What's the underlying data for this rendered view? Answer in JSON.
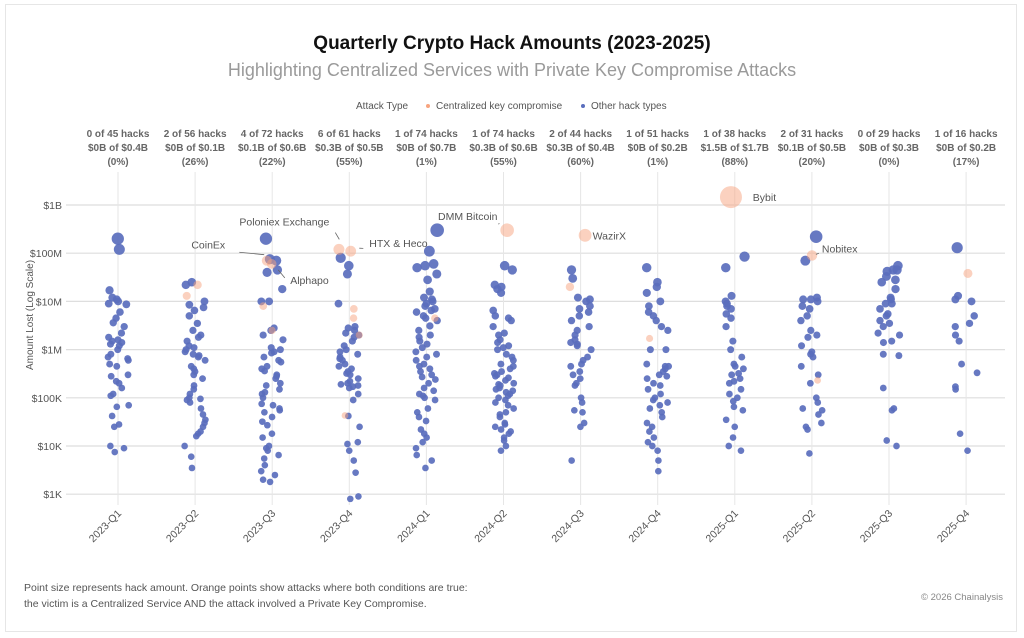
{
  "chart_data": {
    "type": "scatter",
    "title": "Quarterly Crypto Hack Amounts (2023-2025)",
    "subtitle": "Highlighting Centralized Services with Private Key Compromise Attacks",
    "ylabel": "Amount Lost (Log Scale)",
    "xlabel": "",
    "y_scale": "log",
    "ylim": [
      1000,
      2000000000
    ],
    "y_ticks": [
      1000000000.0,
      100000000.0,
      10000000.0,
      1000000.0,
      100000.0,
      10000.0,
      1000.0
    ],
    "y_tick_labels": [
      "$1B",
      "$100M",
      "$10M",
      "$1M",
      "$100K",
      "$10K",
      "$1K"
    ],
    "grid": true,
    "legend": {
      "title": "Attack Type",
      "placement": "top",
      "entries": [
        {
          "name": "Centralized key compromise",
          "color": "#f7a47f"
        },
        {
          "name": "Other hack types",
          "color": "#5a6ebd"
        }
      ]
    },
    "point_size_encodes": "amount",
    "categories": [
      "2023-Q1",
      "2023-Q2",
      "2023-Q3",
      "2023-Q4",
      "2024-Q1",
      "2024-Q2",
      "2024-Q3",
      "2024-Q4",
      "2025-Q1",
      "2025-Q2",
      "2025-Q3",
      "2025-Q4"
    ],
    "quarter_stats": [
      {
        "hacks": "0 of 45 hacks",
        "amount": "$0B of $0.4B",
        "pct": "(0%)"
      },
      {
        "hacks": "2 of 56 hacks",
        "amount": "$0B of $0.1B",
        "pct": "(26%)"
      },
      {
        "hacks": "4 of 72 hacks",
        "amount": "$0.1B of $0.6B",
        "pct": "(22%)"
      },
      {
        "hacks": "6 of 61 hacks",
        "amount": "$0.3B of $0.5B",
        "pct": "(55%)"
      },
      {
        "hacks": "1 of 74 hacks",
        "amount": "$0B of $0.7B",
        "pct": "(1%)"
      },
      {
        "hacks": "1 of 74 hacks",
        "amount": "$0.3B of $0.6B",
        "pct": "(55%)"
      },
      {
        "hacks": "2 of 44 hacks",
        "amount": "$0.3B of $0.4B",
        "pct": "(60%)"
      },
      {
        "hacks": "1 of 51 hacks",
        "amount": "$0B of $0.2B",
        "pct": "(1%)"
      },
      {
        "hacks": "1 of 38 hacks",
        "amount": "$1.5B of $1.7B",
        "pct": "(88%)"
      },
      {
        "hacks": "2 of 31 hacks",
        "amount": "$0.1B of $0.5B",
        "pct": "(20%)"
      },
      {
        "hacks": "0 of 29 hacks",
        "amount": "$0B of $0.3B",
        "pct": "(0%)"
      },
      {
        "hacks": "1 of 16 hacks",
        "amount": "$0B of $0.2B",
        "pct": "(17%)"
      }
    ],
    "series": [
      {
        "name": "Centralized key compromise",
        "color": "#f7a47f",
        "points": [
          [],
          [
            22000000.0,
            13000000.0
          ],
          [
            70000000.0,
            60000000.0,
            8000000.0,
            2500000.0
          ],
          [
            120000000.0,
            110000000.0,
            7000000.0,
            4500000.0,
            2000000.0,
            43000.0
          ],
          [
            4500000.0
          ],
          [
            300000000.0
          ],
          [
            235000000.0,
            20000000.0
          ],
          [
            1700000.0
          ],
          [
            1460000000.0
          ],
          [
            90000000.0,
            230000.0
          ],
          [],
          [
            38000000.0
          ]
        ]
      },
      {
        "name": "Other hack types",
        "color": "#5a6ebd",
        "points": [
          [
            200000000.0,
            120000000.0,
            17000000.0,
            12000000.0,
            11000000.0,
            10000000.0,
            9000000.0,
            8700000.0,
            6000000.0,
            4500000.0,
            3600000.0,
            3000000.0,
            2200000.0,
            1800000.0,
            1600000.0,
            1500000.0,
            1400000.0,
            1300000.0,
            1200000.0,
            1000000.0,
            800000.0,
            700000.0,
            650000.0,
            600000.0,
            500000.0,
            450000.0,
            300000.0,
            280000.0,
            220000.0,
            200000.0,
            160000.0,
            120000.0,
            110000.0,
            70000.0,
            65000.0,
            42000.0,
            28000.0,
            25000.0,
            10000.0,
            9000.0,
            7500.0
          ],
          [
            25000000.0,
            22000000.0,
            10000000.0,
            8500000.0,
            7500000.0,
            6500000.0,
            5000000.0,
            3500000.0,
            2500000.0,
            2000000.0,
            1800000.0,
            1500000.0,
            1200000.0,
            1100000.0,
            1000000.0,
            900000.0,
            800000.0,
            750000.0,
            700000.0,
            600000.0,
            450000.0,
            400000.0,
            350000.0,
            300000.0,
            250000.0,
            180000.0,
            150000.0,
            120000.0,
            100000.0,
            95000.0,
            90000.0,
            80000.0,
            60000.0,
            45000.0,
            35000.0,
            30000.0,
            25000.0,
            20000.0,
            18000.0,
            16000.0,
            10000.0,
            6000.0,
            3500.0
          ],
          [
            200000000.0,
            75000000.0,
            70000000.0,
            45000000.0,
            40000000.0,
            18000000.0,
            10000000.0,
            10000000.0,
            2800000.0,
            2500000.0,
            2000000.0,
            1600000.0,
            1100000.0,
            1000000.0,
            900000.0,
            850000.0,
            700000.0,
            600000.0,
            550000.0,
            450000.0,
            400000.0,
            360000.0,
            300000.0,
            280000.0,
            250000.0,
            200000.0,
            180000.0,
            150000.0,
            130000.0,
            120000.0,
            100000.0,
            75000.0,
            70000.0,
            60000.0,
            55000.0,
            50000.0,
            40000.0,
            32000.0,
            27000.0,
            18000.0,
            15000.0,
            10000.0,
            9000.0,
            8000.0,
            6500.0,
            5500.0,
            4000.0,
            3000.0,
            2500.0,
            2000.0,
            1800.0
          ],
          [
            80000000.0,
            55000000.0,
            37000000.0,
            9000000.0,
            3000000.0,
            2800000.0,
            2500000.0,
            2200000.0,
            2000000.0,
            1800000.0,
            1500000.0,
            1200000.0,
            1000000.0,
            900000.0,
            800000.0,
            700000.0,
            650000.0,
            600000.0,
            500000.0,
            450000.0,
            400000.0,
            350000.0,
            320000.0,
            300000.0,
            250000.0,
            220000.0,
            200000.0,
            190000.0,
            180000.0,
            170000.0,
            160000.0,
            120000.0,
            90000.0,
            42000.0,
            25000.0,
            12000.0,
            11000.0,
            8000.0,
            5000.0,
            2800.0,
            900.0,
            800.0
          ],
          [
            300000000.0,
            110000000.0,
            60000000.0,
            55000000.0,
            50000000.0,
            37000000.0,
            28000000.0,
            16000000.0,
            12000000.0,
            11000000.0,
            10000000.0,
            9000000.0,
            8000000.0,
            7000000.0,
            6500000.0,
            6000000.0,
            5000000.0,
            4500000.0,
            4000000.0,
            3100000.0,
            2500000.0,
            2000000.0,
            1800000.0,
            1500000.0,
            1300000.0,
            1100000.0,
            900000.0,
            800000.0,
            700000.0,
            600000.0,
            500000.0,
            450000.0,
            400000.0,
            350000.0,
            300000.0,
            270000.0,
            240000.0,
            200000.0,
            160000.0,
            140000.0,
            120000.0,
            110000.0,
            100000.0,
            90000.0,
            60000.0,
            50000.0,
            40000.0,
            33000.0,
            22000.0,
            18000.0,
            15000.0,
            12000.0,
            9000.0,
            6500.0,
            5000.0,
            3500.0
          ],
          [
            55000000.0,
            45000000.0,
            22000000.0,
            20000000.0,
            18000000.0,
            15000000.0,
            6500000.0,
            5000000.0,
            4500000.0,
            4000000.0,
            3000000.0,
            2200000.0,
            2000000.0,
            1600000.0,
            1400000.0,
            1200000.0,
            1100000.0,
            1000000.0,
            800000.0,
            700000.0,
            600000.0,
            500000.0,
            450000.0,
            400000.0,
            350000.0,
            320000.0,
            300000.0,
            280000.0,
            260000.0,
            230000.0,
            200000.0,
            190000.0,
            180000.0,
            160000.0,
            150000.0,
            140000.0,
            130000.0,
            120000.0,
            110000.0,
            100000.0,
            90000.0,
            80000.0,
            70000.0,
            60000.0,
            50000.0,
            45000.0,
            40000.0,
            30000.0,
            28000.0,
            25000.0,
            22000.0,
            20000.0,
            18000.0,
            15000.0,
            13000.0,
            10000.0,
            8000.0
          ],
          [
            45000000.0,
            30000000.0,
            12000000.0,
            11000000.0,
            10000000.0,
            8000000.0,
            7000000.0,
            6000000.0,
            5000000.0,
            4000000.0,
            3000000.0,
            2500000.0,
            2000000.0,
            1600000.0,
            1400000.0,
            1300000.0,
            1200000.0,
            1000000.0,
            700000.0,
            600000.0,
            500000.0,
            450000.0,
            350000.0,
            300000.0,
            250000.0,
            200000.0,
            180000.0,
            100000.0,
            80000.0,
            55000.0,
            50000.0,
            30000.0,
            25000.0,
            5000.0
          ],
          [
            50000000.0,
            25000000.0,
            20000000.0,
            15000000.0,
            10000000.0,
            8000000.0,
            6000000.0,
            5000000.0,
            4000000.0,
            3000000.0,
            2500000.0,
            1000000.0,
            1000000.0,
            500000.0,
            450000.0,
            450000.0,
            400000.0,
            350000.0,
            300000.0,
            280000.0,
            250000.0,
            200000.0,
            180000.0,
            150000.0,
            120000.0,
            100000.0,
            90000.0,
            80000.0,
            70000.0,
            60000.0,
            50000.0,
            40000.0,
            30000.0,
            25000.0,
            20000.0,
            15000.0,
            12000.0,
            10000.0,
            8000.0,
            5000.0,
            3000.0
          ],
          [
            85000000.0,
            50000000.0,
            13000000.0,
            10000000.0,
            9000000.0,
            8000000.0,
            7000000.0,
            5500000.0,
            4500000.0,
            3000000.0,
            1500000.0,
            1000000.0,
            700000.0,
            500000.0,
            450000.0,
            400000.0,
            320000.0,
            300000.0,
            250000.0,
            220000.0,
            200000.0,
            150000.0,
            120000.0,
            100000.0,
            85000.0,
            65000.0,
            55000.0,
            35000.0,
            25000.0,
            15000.0,
            10000.0,
            8000.0
          ],
          [
            220000000.0,
            70000000.0,
            12000000.0,
            11000000.0,
            11000000.0,
            10000000.0,
            8000000.0,
            7000000.0,
            5000000.0,
            4000000.0,
            2500000.0,
            2000000.0,
            1800000.0,
            1200000.0,
            900000.0,
            800000.0,
            700000.0,
            450000.0,
            300000.0,
            200000.0,
            100000.0,
            80000.0,
            60000.0,
            55000.0,
            45000.0,
            30000.0,
            25000.0,
            22000.0,
            7000.0
          ],
          [
            55000000.0,
            45000000.0,
            45000000.0,
            42000000.0,
            33000000.0,
            28000000.0,
            25000000.0,
            18000000.0,
            12000000.0,
            11000000.0,
            9000000.0,
            9000000.0,
            7000000.0,
            5500000.0,
            5000000.0,
            4000000.0,
            3500000.0,
            3000000.0,
            2200000.0,
            2000000.0,
            1500000.0,
            1400000.0,
            800000.0,
            750000.0,
            160000.0,
            60000.0,
            55000.0,
            13000.0,
            10000.0
          ],
          [
            130000000.0,
            13000000.0,
            11000000.0,
            10000000.0,
            5000000.0,
            3500000.0,
            3000000.0,
            2000000.0,
            1500000.0,
            500000.0,
            330000.0,
            170000.0,
            150000.0,
            18000.0,
            8000.0
          ]
        ]
      }
    ],
    "annotations": [
      {
        "label": "CoinEx",
        "quarter": "2023-Q3",
        "value": 70000000.0
      },
      {
        "label": "Alphapo",
        "quarter": "2023-Q3",
        "value": 60000000.0
      },
      {
        "label": "Poloniex Exchange",
        "quarter": "2023-Q4",
        "value": 120000000.0
      },
      {
        "label": "HTX & Heco",
        "quarter": "2023-Q4",
        "value": 110000000.0
      },
      {
        "label": "DMM Bitcoin",
        "quarter": "2024-Q2",
        "value": 300000000.0
      },
      {
        "label": "WazirX",
        "quarter": "2024-Q3",
        "value": 235000000.0
      },
      {
        "label": "Bybit",
        "quarter": "2025-Q1",
        "value": 1460000000.0
      },
      {
        "label": "Nobitex",
        "quarter": "2025-Q2",
        "value": 90000000.0
      }
    ]
  },
  "footer": {
    "note_line1": "Point size represents hack amount. Orange points show attacks where both conditions are true:",
    "note_line2": "the victim is a Centralized Service AND the attack involved a Private Key Compromise.",
    "copyright": "© 2026 Chainalysis"
  }
}
